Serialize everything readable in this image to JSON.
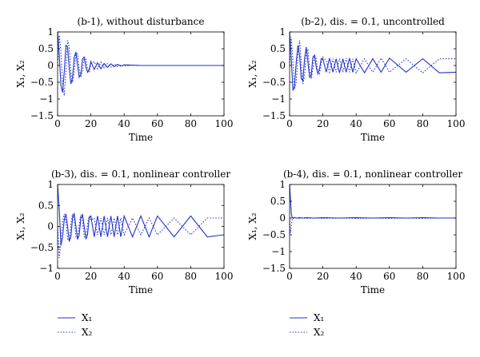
{
  "chart_data": [
    {
      "type": "line",
      "title": "(b-1), without disturbance",
      "xlabel": "Time",
      "ylabel": "X₁, X₂",
      "xlim": [
        0,
        100
      ],
      "ylim": [
        -1.5,
        1
      ],
      "xticks": [
        "0",
        "20",
        "40",
        "60",
        "80",
        "100"
      ],
      "yticks": [
        "1",
        "0.5",
        "0",
        "−0.5",
        "−1",
        "−1.5"
      ],
      "grid": false,
      "series": [
        {
          "name": "X₁",
          "style": "solid",
          "x": [
            0,
            1,
            2,
            3,
            4,
            5,
            6,
            7,
            8,
            9,
            10,
            11,
            12,
            13,
            14,
            15,
            16,
            17,
            18,
            19,
            20,
            22,
            24,
            26,
            28,
            30,
            32,
            34,
            36,
            38,
            40,
            45,
            50,
            55,
            60,
            70,
            80,
            90,
            100
          ],
          "y": [
            1,
            0.3,
            -0.6,
            -0.8,
            -0.2,
            0.6,
            0.55,
            -0.1,
            -0.55,
            -0.35,
            0.25,
            0.4,
            0.0,
            -0.35,
            -0.25,
            0.2,
            0.25,
            -0.05,
            -0.2,
            -0.12,
            0.12,
            -0.12,
            0.08,
            -0.1,
            0.06,
            -0.06,
            0.05,
            -0.04,
            0.03,
            -0.02,
            0.02,
            0.01,
            0,
            0,
            0,
            0,
            0,
            0,
            0
          ]
        },
        {
          "name": "X₂",
          "style": "dotted",
          "x": [
            0,
            1,
            2,
            3,
            4,
            5,
            6,
            7,
            8,
            9,
            10,
            11,
            12,
            13,
            14,
            15,
            16,
            17,
            18,
            19,
            20,
            22,
            24,
            26,
            28,
            30,
            32,
            34,
            36,
            38,
            40,
            45,
            50,
            55,
            60,
            70,
            80,
            90,
            100
          ],
          "y": [
            0,
            0.9,
            0.4,
            -0.5,
            -0.9,
            -0.2,
            0.75,
            0.55,
            -0.2,
            -0.5,
            -0.2,
            0.35,
            0.35,
            -0.1,
            -0.35,
            -0.15,
            0.25,
            0.2,
            -0.1,
            -0.2,
            0.05,
            0.12,
            -0.1,
            0.1,
            -0.07,
            0.06,
            -0.05,
            0.04,
            -0.03,
            0.02,
            -0.02,
            0.01,
            0,
            0,
            0,
            0,
            0,
            0,
            0
          ]
        }
      ]
    },
    {
      "type": "line",
      "title": "(b-2), dis. = 0.1, uncontrolled",
      "xlabel": "Time",
      "ylabel": "X₁, X₂",
      "xlim": [
        0,
        100
      ],
      "ylim": [
        -1.5,
        1
      ],
      "xticks": [
        "0",
        "20",
        "40",
        "60",
        "80",
        "100"
      ],
      "yticks": [
        "1",
        "0.5",
        "0",
        "−0.5",
        "−1",
        "−1.5"
      ],
      "grid": false,
      "series": [
        {
          "name": "X₁",
          "style": "solid",
          "x": [
            0,
            1,
            2,
            3,
            4,
            5,
            6,
            7,
            8,
            9,
            10,
            11,
            12,
            13,
            14,
            15,
            16,
            17,
            18,
            19,
            20,
            22,
            24,
            26,
            28,
            30,
            32,
            34,
            36,
            38,
            40,
            45,
            50,
            55,
            60,
            70,
            80,
            90,
            100
          ],
          "y": [
            1,
            0.2,
            -0.75,
            -0.6,
            0.1,
            0.6,
            0.3,
            -0.4,
            -0.45,
            0.2,
            0.55,
            0.1,
            -0.35,
            -0.3,
            0.25,
            0.3,
            -0.05,
            -0.25,
            -0.1,
            0.2,
            0.2,
            -0.2,
            0.22,
            -0.2,
            0.2,
            -0.22,
            0.2,
            -0.2,
            0.22,
            -0.2,
            0.2,
            -0.22,
            0.2,
            -0.2,
            0.22,
            -0.2,
            0.2,
            -0.22,
            -0.2
          ]
        },
        {
          "name": "X₂",
          "style": "dotted",
          "x": [
            0,
            1,
            2,
            3,
            4,
            5,
            6,
            7,
            8,
            9,
            10,
            11,
            12,
            13,
            14,
            15,
            16,
            17,
            18,
            19,
            20,
            22,
            24,
            26,
            28,
            30,
            32,
            34,
            36,
            38,
            40,
            45,
            50,
            55,
            60,
            70,
            80,
            90,
            100
          ],
          "y": [
            0,
            0.85,
            0.1,
            -0.7,
            -0.5,
            0.3,
            0.75,
            0.1,
            -0.55,
            -0.3,
            0.35,
            0.45,
            -0.1,
            -0.4,
            -0.1,
            0.3,
            0.2,
            -0.2,
            -0.25,
            0.05,
            0.25,
            0.15,
            -0.2,
            0.2,
            -0.2,
            0.2,
            -0.2,
            0.22,
            -0.2,
            0.2,
            -0.22,
            0.2,
            -0.2,
            0.22,
            -0.2,
            0.2,
            -0.22,
            0.2,
            0.2
          ]
        }
      ]
    },
    {
      "type": "line",
      "title": "(b-3), dis. = 0.1, nonlinear controller",
      "xlabel": "Time",
      "ylabel": "X₁, X₂",
      "xlim": [
        0,
        100
      ],
      "ylim": [
        -1,
        1
      ],
      "xticks": [
        "0",
        "20",
        "40",
        "60",
        "80",
        "100"
      ],
      "yticks": [
        "1",
        "0.5",
        "0",
        "−0.5",
        "−1"
      ],
      "grid": false,
      "series": [
        {
          "name": "X₁",
          "style": "solid",
          "x": [
            0,
            1,
            2,
            3,
            4,
            5,
            6,
            7,
            8,
            9,
            10,
            11,
            12,
            13,
            14,
            15,
            16,
            17,
            18,
            19,
            20,
            22,
            24,
            26,
            28,
            30,
            32,
            34,
            36,
            38,
            40,
            45,
            50,
            55,
            60,
            70,
            80,
            90,
            100
          ],
          "y": [
            1,
            0.4,
            -0.45,
            -0.25,
            0.15,
            0.3,
            0.0,
            -0.35,
            -0.25,
            0.2,
            0.3,
            0.0,
            -0.3,
            -0.2,
            0.2,
            0.28,
            0.0,
            -0.3,
            -0.2,
            0.2,
            0.25,
            -0.25,
            0.25,
            -0.25,
            0.25,
            -0.25,
            0.25,
            -0.25,
            0.25,
            -0.25,
            0.25,
            -0.25,
            0.25,
            -0.25,
            0.25,
            -0.25,
            0.25,
            -0.25,
            -0.2
          ]
        },
        {
          "name": "X₂",
          "style": "dotted",
          "x": [
            0,
            1,
            2,
            3,
            4,
            5,
            6,
            7,
            8,
            9,
            10,
            11,
            12,
            13,
            14,
            15,
            16,
            17,
            18,
            19,
            20,
            22,
            24,
            26,
            28,
            30,
            32,
            34,
            36,
            38,
            40,
            45,
            50,
            55,
            60,
            70,
            80,
            90,
            100
          ],
          "y": [
            0,
            -0.75,
            -0.3,
            0.1,
            0.3,
            0.1,
            -0.3,
            -0.35,
            0.05,
            0.3,
            0.15,
            -0.25,
            -0.3,
            0.05,
            0.28,
            0.15,
            -0.25,
            -0.28,
            0.05,
            0.25,
            0.15,
            0.2,
            -0.2,
            0.2,
            -0.2,
            0.2,
            -0.2,
            0.2,
            -0.2,
            0.2,
            -0.2,
            0.2,
            -0.2,
            0.2,
            -0.2,
            0.2,
            -0.2,
            0.2,
            0.2
          ]
        }
      ]
    },
    {
      "type": "line",
      "title": "(b-4), dis. = 0.1, nonlinear controller",
      "xlabel": "Time",
      "ylabel": "X₁, X₂",
      "xlim": [
        0,
        100
      ],
      "ylim": [
        -1.5,
        1
      ],
      "xticks": [
        "0",
        "20",
        "40",
        "60",
        "80",
        "100"
      ],
      "yticks": [
        "1",
        "0.5",
        "0",
        "−0.5",
        "−1",
        "−1.5"
      ],
      "grid": false,
      "series": [
        {
          "name": "X₁",
          "style": "solid",
          "x": [
            0,
            0.5,
            1,
            1.5,
            2,
            3,
            4,
            6,
            8,
            10,
            15,
            20,
            30,
            40,
            50,
            60,
            70,
            80,
            90,
            100
          ],
          "y": [
            1,
            0.6,
            0.15,
            0.02,
            0.0,
            0.02,
            0.0,
            0.01,
            0.0,
            0.01,
            0.0,
            0.01,
            0.0,
            0.01,
            0.0,
            0.01,
            0.0,
            0.01,
            0.0,
            0.0
          ]
        },
        {
          "name": "X₂",
          "style": "dotted",
          "x": [
            0,
            0.5,
            1,
            1.5,
            2,
            3,
            4,
            6,
            8,
            10,
            15,
            20,
            30,
            40,
            50,
            60,
            70,
            80,
            90,
            100
          ],
          "y": [
            0,
            -0.45,
            -0.25,
            -0.05,
            0.0,
            -0.02,
            0.0,
            -0.01,
            0.0,
            -0.01,
            0.0,
            -0.01,
            0.0,
            -0.01,
            0.0,
            -0.01,
            0.0,
            -0.01,
            0.0,
            0.0
          ]
        }
      ]
    }
  ],
  "legends": [
    {
      "items": [
        {
          "label": "X₁",
          "style": "solid"
        },
        {
          "label": "X₂",
          "style": "dotted"
        }
      ]
    },
    {
      "items": [
        {
          "label": "X₁",
          "style": "solid"
        },
        {
          "label": "X₂",
          "style": "dotted"
        }
      ]
    }
  ],
  "colors": {
    "line": "#2233cc",
    "axis": "#000000"
  }
}
